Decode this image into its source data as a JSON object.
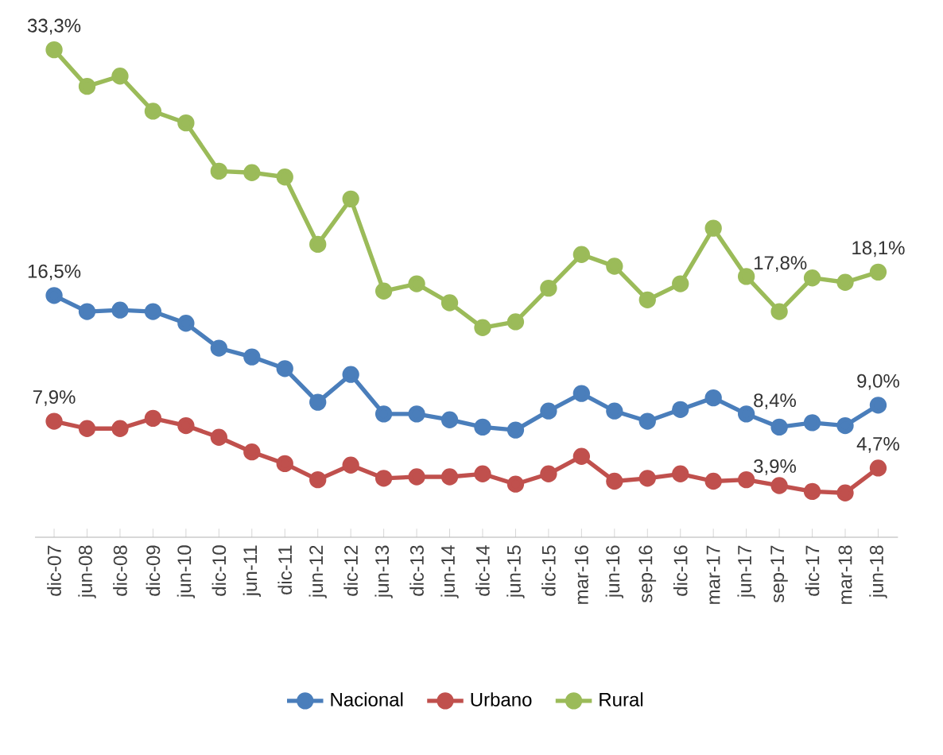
{
  "chart_data": {
    "type": "line",
    "categories": [
      "dic-07",
      "jun-08",
      "dic-08",
      "dic-09",
      "jun-10",
      "dic-10",
      "jun-11",
      "dic-11",
      "jun-12",
      "dic-12",
      "jun-13",
      "dic-13",
      "jun-14",
      "dic-14",
      "jun-15",
      "dic-15",
      "mar-16",
      "jun-16",
      "sep-16",
      "dic-16",
      "mar-17",
      "jun-17",
      "sep-17",
      "dic-17",
      "mar-18",
      "jun-18"
    ],
    "series": [
      {
        "name": "Nacional",
        "color": "#4a7ebb",
        "values": [
          16.5,
          15.4,
          15.5,
          15.4,
          14.6,
          12.9,
          12.3,
          11.5,
          9.2,
          11.1,
          8.4,
          8.4,
          8.0,
          7.5,
          7.3,
          8.6,
          9.8,
          8.6,
          7.9,
          8.7,
          9.5,
          8.4,
          7.5,
          7.8,
          7.6,
          9.0
        ],
        "value_labels": [
          "16,5%",
          null,
          null,
          null,
          null,
          null,
          null,
          null,
          null,
          null,
          null,
          null,
          null,
          null,
          null,
          null,
          null,
          null,
          null,
          null,
          null,
          "8,4%",
          null,
          null,
          null,
          "9,0%"
        ]
      },
      {
        "name": "Urbano",
        "color": "#c0504d",
        "values": [
          7.9,
          7.4,
          7.4,
          8.1,
          7.6,
          6.8,
          5.8,
          5.0,
          3.9,
          4.9,
          4.0,
          4.1,
          4.1,
          4.3,
          3.6,
          4.3,
          5.5,
          3.8,
          4.0,
          4.3,
          3.8,
          3.9,
          3.5,
          3.1,
          3.0,
          4.7
        ],
        "value_labels": [
          "7,9%",
          null,
          null,
          null,
          null,
          null,
          null,
          null,
          null,
          null,
          null,
          null,
          null,
          null,
          null,
          null,
          null,
          null,
          null,
          null,
          null,
          "3,9%",
          null,
          null,
          null,
          "4,7%"
        ]
      },
      {
        "name": "Rural",
        "color": "#9bbb59",
        "values": [
          33.3,
          30.8,
          31.5,
          29.1,
          28.3,
          25.0,
          24.9,
          24.6,
          20.0,
          23.1,
          16.8,
          17.3,
          16.0,
          14.3,
          14.7,
          17.0,
          19.3,
          18.5,
          16.2,
          17.3,
          21.1,
          17.8,
          15.4,
          17.7,
          17.4,
          18.1
        ],
        "value_labels": [
          "33,3%",
          null,
          null,
          null,
          null,
          null,
          null,
          null,
          null,
          null,
          null,
          null,
          null,
          null,
          null,
          null,
          null,
          null,
          null,
          null,
          null,
          "17,8%",
          null,
          null,
          null,
          "18,1%"
        ]
      }
    ],
    "tick_labels": "x",
    "legend": "bottom",
    "marker": "circle",
    "line_style": "solid",
    "grid": false
  }
}
